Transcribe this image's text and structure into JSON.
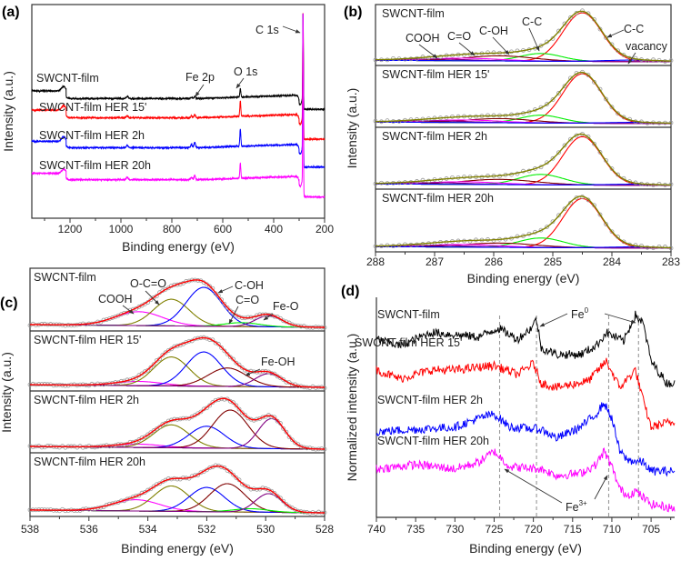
{
  "chart_data": [
    {
      "panel": "(a)",
      "type": "line",
      "xlabel": "Binding energy (eV)",
      "ylabel": "Intensity (a.u.)",
      "xlim": [
        1350,
        200
      ],
      "ylim": [
        0,
        100
      ],
      "xticks": [
        "1200",
        "1000",
        "800",
        "600",
        "400",
        "200"
      ],
      "grid": false,
      "series": [
        {
          "name": "SWCNT-film",
          "color": "#000000",
          "high_be_level": 59.6,
          "level": 56,
          "post_c1s_level": 51,
          "o1s_height": 4,
          "fe2p_height": 1,
          "c1s_height": 42
        },
        {
          "name": "SWCNT-film HER 15'",
          "color": "#ff0000",
          "high_be_level": 50.6,
          "level": 47,
          "post_c1s_level": 37,
          "o1s_height": 7,
          "fe2p_height": 1.5,
          "c1s_height": 55
        },
        {
          "name": "SWCNT-film HER 2h",
          "color": "#0000ff",
          "high_be_level": 36,
          "level": 33,
          "post_c1s_level": 24,
          "o1s_height": 8,
          "fe2p_height": 2.5,
          "c1s_height": 66
        },
        {
          "name": "SWCNT-film HER 20h",
          "color": "#ff00ff",
          "high_be_level": 21,
          "level": 18,
          "post_c1s_level": 10,
          "o1s_height": 7,
          "fe2p_height": 2,
          "c1s_height": 80
        }
      ],
      "annotations": [
        {
          "text": "Fe 2p",
          "x": 710
        },
        {
          "text": "O 1s",
          "x": 531
        },
        {
          "text": "C 1s",
          "x": 284
        }
      ]
    },
    {
      "panel": "(b)",
      "type": "line",
      "xlabel": "Binding energy (eV)",
      "ylabel": "Intensity (a.u.)",
      "xlim": [
        288,
        283
      ],
      "ylim": [
        0,
        1.05
      ],
      "xticks": [
        "288",
        "287",
        "286",
        "285",
        "284",
        "283"
      ],
      "grid": false,
      "envelope_color": "#808000",
      "baseline_color": "#000080",
      "data_marker_color": "#999999",
      "subpanels": [
        {
          "name": "SWCNT-film",
          "components": [
            {
              "name": "C-C",
              "center": 284.5,
              "sigma": 0.33,
              "height": 0.95,
              "color": "#ff0000"
            },
            {
              "name": "C-C",
              "center": 285.2,
              "sigma": 0.35,
              "height": 0.15,
              "color": "#00ee00"
            },
            {
              "name": "C-OH",
              "center": 285.9,
              "sigma": 0.55,
              "height": 0.1,
              "color": "#800000"
            },
            {
              "name": "C=O",
              "center": 286.5,
              "sigma": 0.6,
              "height": 0.05,
              "color": "#ff00ff"
            },
            {
              "name": "COOH",
              "center": 287.0,
              "sigma": 0.6,
              "height": 0.03,
              "color": "#800080"
            },
            {
              "name": "vacancy",
              "center": 283.6,
              "sigma": 0.5,
              "height": 0.03,
              "color": "#0000ff"
            }
          ]
        },
        {
          "name": "SWCNT-film HER 15'",
          "components": [
            {
              "name": "C-C",
              "center": 284.5,
              "sigma": 0.33,
              "height": 0.95,
              "color": "#ff0000"
            },
            {
              "name": "C-C",
              "center": 285.2,
              "sigma": 0.35,
              "height": 0.15,
              "color": "#00ee00"
            },
            {
              "name": "C-OH",
              "center": 285.9,
              "sigma": 0.55,
              "height": 0.08,
              "color": "#800000"
            },
            {
              "name": "C=O",
              "center": 286.5,
              "sigma": 0.6,
              "height": 0.05,
              "color": "#ff00ff"
            },
            {
              "name": "COOH",
              "center": 287.0,
              "sigma": 0.6,
              "height": 0.03,
              "color": "#800080"
            },
            {
              "name": "vacancy",
              "center": 283.6,
              "sigma": 0.5,
              "height": 0.02,
              "color": "#0000ff"
            }
          ]
        },
        {
          "name": "SWCNT-film HER 2h",
          "components": [
            {
              "name": "C-C",
              "center": 284.5,
              "sigma": 0.33,
              "height": 0.93,
              "color": "#ff0000"
            },
            {
              "name": "C-C",
              "center": 285.2,
              "sigma": 0.38,
              "height": 0.2,
              "color": "#00ee00"
            },
            {
              "name": "C-OH",
              "center": 285.9,
              "sigma": 0.6,
              "height": 0.1,
              "color": "#800000"
            },
            {
              "name": "C=O",
              "center": 286.5,
              "sigma": 0.6,
              "height": 0.05,
              "color": "#ff00ff"
            },
            {
              "name": "COOH",
              "center": 287.0,
              "sigma": 0.6,
              "height": 0.03,
              "color": "#800080"
            },
            {
              "name": "vacancy",
              "center": 283.6,
              "sigma": 0.5,
              "height": 0.02,
              "color": "#0000ff"
            }
          ]
        },
        {
          "name": "SWCNT-film HER 20h",
          "components": [
            {
              "name": "C-C",
              "center": 284.5,
              "sigma": 0.33,
              "height": 0.93,
              "color": "#ff0000"
            },
            {
              "name": "C-C",
              "center": 285.2,
              "sigma": 0.38,
              "height": 0.18,
              "color": "#00ee00"
            },
            {
              "name": "C-OH",
              "center": 285.9,
              "sigma": 0.6,
              "height": 0.08,
              "color": "#800000"
            },
            {
              "name": "C=O",
              "center": 286.5,
              "sigma": 0.6,
              "height": 0.05,
              "color": "#ff00ff"
            },
            {
              "name": "COOH",
              "center": 287.0,
              "sigma": 0.6,
              "height": 0.03,
              "color": "#800080"
            },
            {
              "name": "vacancy",
              "center": 283.6,
              "sigma": 0.5,
              "height": 0.02,
              "color": "#0000ff"
            }
          ]
        }
      ],
      "annotations": [
        {
          "text": "COOH",
          "x": 287.0
        },
        {
          "text": "C=O",
          "x": 286.5
        },
        {
          "text": "C-OH",
          "x": 285.9
        },
        {
          "text": "C-C",
          "x": 285.2
        },
        {
          "text": "C-C",
          "x": 284.2
        },
        {
          "text": "vacancy",
          "x": 283.6
        }
      ]
    },
    {
      "panel": "(c)",
      "type": "line",
      "xlabel": "Binding energy (eV)",
      "ylabel": "Intensity (a.u.)",
      "xlim": [
        538,
        528
      ],
      "ylim": [
        0,
        1
      ],
      "xticks": [
        "538",
        "536",
        "534",
        "532",
        "530",
        "528"
      ],
      "grid": false,
      "envelope_color": "#ff0000",
      "baseline_color": "#000000",
      "data_marker_color": "#999999",
      "subpanels": [
        {
          "name": "SWCNT-film",
          "components": [
            {
              "name": "COOH",
              "center": 534.3,
              "sigma": 0.8,
              "height": 0.25,
              "color": "#ff00ff"
            },
            {
              "name": "O-C=O",
              "center": 533.2,
              "sigma": 0.6,
              "height": 0.48,
              "color": "#808000"
            },
            {
              "name": "C-OH",
              "center": 532.1,
              "sigma": 0.6,
              "height": 0.7,
              "color": "#0000ff"
            },
            {
              "name": "C=O",
              "center": 530.8,
              "sigma": 0.6,
              "height": 0.07,
              "color": "#00ee00"
            },
            {
              "name": "Fe-O",
              "center": 529.9,
              "sigma": 0.45,
              "height": 0.2,
              "color": "#800080"
            }
          ]
        },
        {
          "name": "SWCNT-film HER 15'",
          "components": [
            {
              "name": "COOH",
              "center": 534.3,
              "sigma": 0.8,
              "height": 0.08,
              "color": "#ff00ff"
            },
            {
              "name": "O-C=O",
              "center": 533.2,
              "sigma": 0.6,
              "height": 0.55,
              "color": "#808000"
            },
            {
              "name": "C-OH",
              "center": 532.1,
              "sigma": 0.6,
              "height": 0.65,
              "color": "#0000ff"
            },
            {
              "name": "Fe-OH",
              "center": 531.3,
              "sigma": 0.65,
              "height": 0.35,
              "color": "#800000"
            },
            {
              "name": "Fe-O",
              "center": 529.9,
              "sigma": 0.45,
              "height": 0.25,
              "color": "#800080"
            }
          ]
        },
        {
          "name": "SWCNT-film HER 2h",
          "components": [
            {
              "name": "COOH",
              "center": 534.3,
              "sigma": 0.8,
              "height": 0.06,
              "color": "#ff00ff"
            },
            {
              "name": "O-C=O",
              "center": 533.2,
              "sigma": 0.6,
              "height": 0.42,
              "color": "#808000"
            },
            {
              "name": "C-OH",
              "center": 532.0,
              "sigma": 0.6,
              "height": 0.4,
              "color": "#0000ff"
            },
            {
              "name": "Fe-OH",
              "center": 531.2,
              "sigma": 0.6,
              "height": 0.7,
              "color": "#800000"
            },
            {
              "name": "Fe-O",
              "center": 529.8,
              "sigma": 0.45,
              "height": 0.55,
              "color": "#800080"
            }
          ]
        },
        {
          "name": "SWCNT-film HER 20h",
          "components": [
            {
              "name": "COOH",
              "center": 534.4,
              "sigma": 0.8,
              "height": 0.2,
              "color": "#ff00ff"
            },
            {
              "name": "O-C=O",
              "center": 533.2,
              "sigma": 0.6,
              "height": 0.45,
              "color": "#808000"
            },
            {
              "name": "C-OH",
              "center": 532.0,
              "sigma": 0.6,
              "height": 0.43,
              "color": "#0000ff"
            },
            {
              "name": "Fe-OH",
              "center": 531.3,
              "sigma": 0.6,
              "height": 0.5,
              "color": "#800000"
            },
            {
              "name": "C=O",
              "center": 530.5,
              "sigma": 0.6,
              "height": 0.06,
              "color": "#00ee00"
            },
            {
              "name": "Fe-O",
              "center": 529.9,
              "sigma": 0.45,
              "height": 0.33,
              "color": "#800080"
            }
          ]
        }
      ],
      "annotations": [
        {
          "text": "COOH",
          "x": 534.3
        },
        {
          "text": "O-C=O",
          "x": 533.2
        },
        {
          "text": "C-OH",
          "x": 531.9
        },
        {
          "text": "C=O",
          "x": 530.8
        },
        {
          "text": "Fe-O",
          "x": 529.9
        },
        {
          "text": "Fe-OH",
          "x": 531.0
        }
      ]
    },
    {
      "panel": "(d)",
      "type": "line",
      "xlabel": "Binding energy (eV)",
      "ylabel": "Normalized intensity (a.u.)",
      "xlim": [
        740,
        702
      ],
      "ylim": [
        0,
        100
      ],
      "xticks": [
        "740",
        "735",
        "730",
        "725",
        "720",
        "715",
        "710",
        "705"
      ],
      "grid": false,
      "reference_lines": [
        724.3,
        719.6,
        710.4,
        706.6
      ],
      "series": [
        {
          "name": "SWCNT-film",
          "color": "#000000",
          "trace": [
            [
              740,
              81
            ],
            [
              737,
              78
            ],
            [
              733,
              84
            ],
            [
              730,
              83
            ],
            [
              727,
              82
            ],
            [
              724.5,
              86
            ],
            [
              722,
              81
            ],
            [
              720.3,
              86
            ],
            [
              719.6,
              90
            ],
            [
              719,
              77
            ],
            [
              717,
              74
            ],
            [
              714,
              74
            ],
            [
              712,
              78
            ],
            [
              710.7,
              84
            ],
            [
              708.5,
              80
            ],
            [
              707,
              92
            ],
            [
              706,
              88
            ],
            [
              705,
              71
            ],
            [
              703,
              61
            ],
            [
              702,
              61
            ]
          ]
        },
        {
          "name": "SWCNT-film HER 15'",
          "color": "#ff0000",
          "trace": [
            [
              740,
              67
            ],
            [
              737,
              63
            ],
            [
              733,
              67
            ],
            [
              730,
              67
            ],
            [
              725,
              69
            ],
            [
              722,
              65
            ],
            [
              720,
              70
            ],
            [
              719,
              61
            ],
            [
              717,
              59
            ],
            [
              713,
              62
            ],
            [
              710.7,
              71
            ],
            [
              709,
              59
            ],
            [
              707,
              67
            ],
            [
              706,
              53
            ],
            [
              705,
              41
            ],
            [
              703,
              43
            ],
            [
              702,
              43
            ]
          ]
        },
        {
          "name": "SWCNT-film HER 2h",
          "color": "#0000ff",
          "trace": [
            [
              740,
              39
            ],
            [
              735,
              40
            ],
            [
              730,
              41
            ],
            [
              727,
              45
            ],
            [
              725,
              47
            ],
            [
              723,
              41
            ],
            [
              719,
              40
            ],
            [
              717,
              36
            ],
            [
              714,
              41
            ],
            [
              712,
              47
            ],
            [
              711,
              52
            ],
            [
              710,
              45
            ],
            [
              709,
              30
            ],
            [
              708,
              26
            ],
            [
              706,
              25
            ],
            [
              705,
              21
            ],
            [
              702,
              21
            ]
          ]
        },
        {
          "name": "SWCNT-film HER 20h",
          "color": "#ff00ff",
          "trace": [
            [
              740,
              22
            ],
            [
              735,
              24
            ],
            [
              730,
              22
            ],
            [
              727,
              25
            ],
            [
              725,
              30
            ],
            [
              723,
              23
            ],
            [
              719,
              22
            ],
            [
              717,
              19
            ],
            [
              714,
              20
            ],
            [
              712,
              24
            ],
            [
              711,
              30
            ],
            [
              710,
              23
            ],
            [
              709,
              13
            ],
            [
              708,
              10
            ],
            [
              707,
              12
            ],
            [
              705,
              6
            ],
            [
              702,
              4
            ]
          ]
        }
      ],
      "annotations": [
        {
          "text": "Fe",
          "sup": "0",
          "targets": [
            719.6,
            706.6
          ]
        },
        {
          "text": "Fe",
          "sup": "3+",
          "targets": [
            724.3,
            710.4
          ]
        }
      ]
    }
  ]
}
